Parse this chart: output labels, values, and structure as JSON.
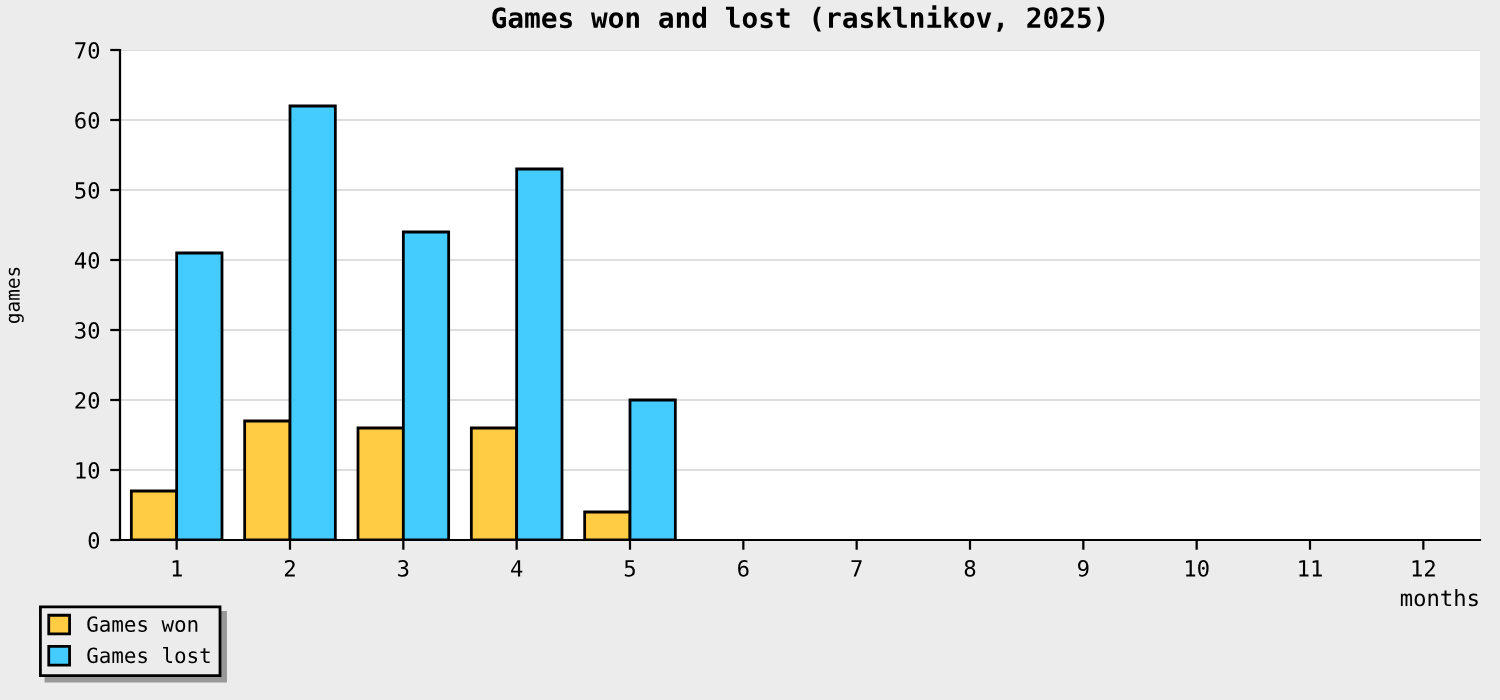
{
  "chart_data": {
    "type": "bar",
    "title": "Games won and lost (rasklnikov, 2025)",
    "xlabel": "months",
    "ylabel": "games",
    "categories": [
      "1",
      "2",
      "3",
      "4",
      "5",
      "6",
      "7",
      "8",
      "9",
      "10",
      "11",
      "12"
    ],
    "series": [
      {
        "name": "Games won",
        "color": "#ffcc44",
        "values": [
          7,
          17,
          16,
          16,
          4,
          null,
          null,
          null,
          null,
          null,
          null,
          null
        ]
      },
      {
        "name": "Games lost",
        "color": "#44ccff",
        "values": [
          41,
          62,
          44,
          53,
          20,
          null,
          null,
          null,
          null,
          null,
          null,
          null
        ]
      }
    ],
    "ylim": [
      0,
      70
    ],
    "yticks": [
      0,
      10,
      20,
      30,
      40,
      50,
      60,
      70
    ],
    "grid": "y",
    "legend": "bottom left"
  }
}
